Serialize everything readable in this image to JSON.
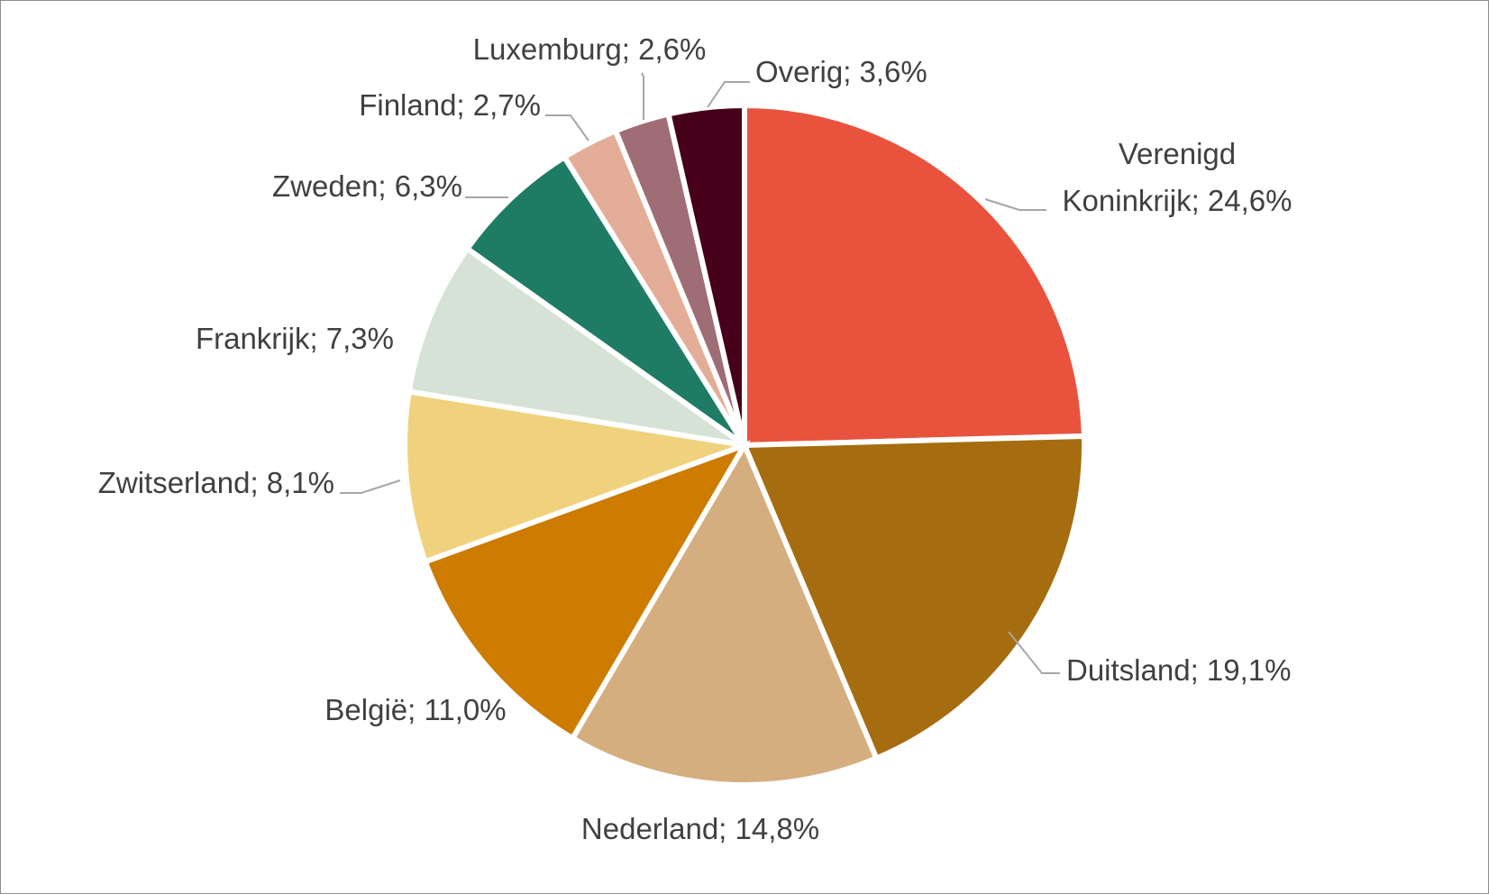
{
  "chart_data": {
    "type": "pie",
    "title": "",
    "start_angle_deg": 0,
    "direction": "clockwise",
    "legend": "none",
    "label_format": "category; percent",
    "slices": [
      {
        "label": "Verenigd Koninkrijk",
        "label_lines": [
          "Verenigd",
          "Koninkrijk; 24,6%"
        ],
        "value": 24.6,
        "color": "#e9533d"
      },
      {
        "label": "Duitsland",
        "label_lines": [
          "Duitsland; 19,1%"
        ],
        "value": 19.1,
        "color": "#a56d10"
      },
      {
        "label": "Nederland",
        "label_lines": [
          "Nederland; 14,8%"
        ],
        "value": 14.8,
        "color": "#d4ae7e"
      },
      {
        "label": "België",
        "label_lines": [
          "België; 11,0%"
        ],
        "value": 11.0,
        "color": "#cd7c00"
      },
      {
        "label": "Zwitserland",
        "label_lines": [
          "Zwitserland; 8,1%"
        ],
        "value": 8.1,
        "color": "#f0d17d"
      },
      {
        "label": "Frankrijk",
        "label_lines": [
          "Frankrijk; 7,3%"
        ],
        "value": 7.3,
        "color": "#d6e2d6"
      },
      {
        "label": "Zweden",
        "label_lines": [
          "Zweden; 6,3%"
        ],
        "value": 6.3,
        "color": "#1e7b64"
      },
      {
        "label": "Finland",
        "label_lines": [
          "Finland; 2,7%"
        ],
        "value": 2.7,
        "color": "#e4ad98"
      },
      {
        "label": "Luxemburg",
        "label_lines": [
          "Luxemburg; 2,6%"
        ],
        "value": 2.6,
        "color": "#9f6d75"
      },
      {
        "label": "Overig",
        "label_lines": [
          "Overig; 3,6%"
        ],
        "value": 3.6,
        "color": "#46001a"
      }
    ]
  }
}
